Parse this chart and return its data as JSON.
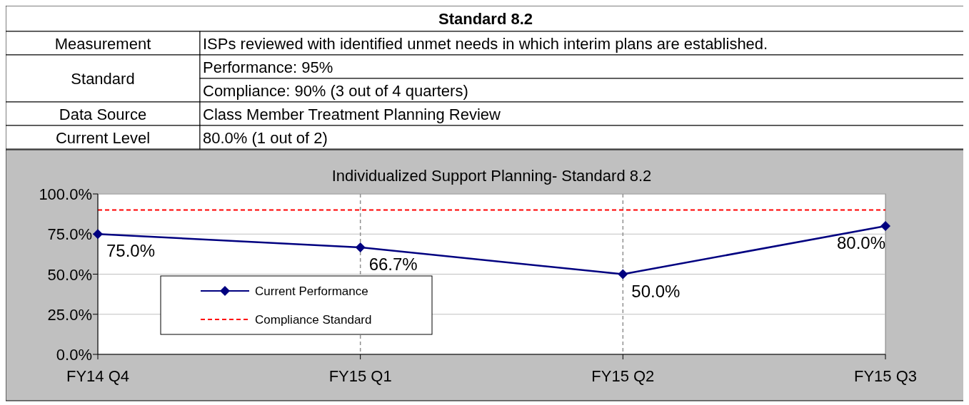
{
  "chart_data": [
    {
      "type": "other",
      "title": "Standard 8.2",
      "annotations": [
        "Measurement",
        "ISPs reviewed with identified unmet needs in which interim plans are established.",
        "Standard",
        "Performance: 95%",
        "Compliance: 90% (3 out of 4 quarters)",
        "Data Source",
        "Class Member Treatment Planning Review",
        "Current Level",
        "80.0% (1 out of 2)"
      ]
    },
    {
      "type": "line",
      "title": "Individualized Support Planning- Standard 8.2",
      "categories": [
        "FY14 Q4",
        "FY15 Q1",
        "FY15 Q2",
        "FY15 Q3"
      ],
      "series": [
        {
          "name": "Current Performance",
          "color": "#000080",
          "values": [
            75,
            66.7,
            50,
            80
          ],
          "value_labels": [
            "75.0%",
            "66.7%",
            "50.0%",
            "80.0%"
          ]
        }
      ],
      "ylim": [
        0,
        100
      ],
      "yticks": [
        {
          "value": 0,
          "label": "0.0%"
        },
        {
          "value": 25,
          "label": "25.0%"
        },
        {
          "value": 50,
          "label": "50.0%"
        },
        {
          "value": 75,
          "label": "75.0%"
        },
        {
          "value": 100,
          "label": "100.0%"
        }
      ],
      "ref_lines": [
        {
          "axis": "y",
          "value": 90,
          "label": "Compliance Standard",
          "color": "#ff0000",
          "line_style": "dashed"
        }
      ],
      "grid": true,
      "legend": "left",
      "marker": "diamond",
      "line_style": "solid"
    }
  ]
}
